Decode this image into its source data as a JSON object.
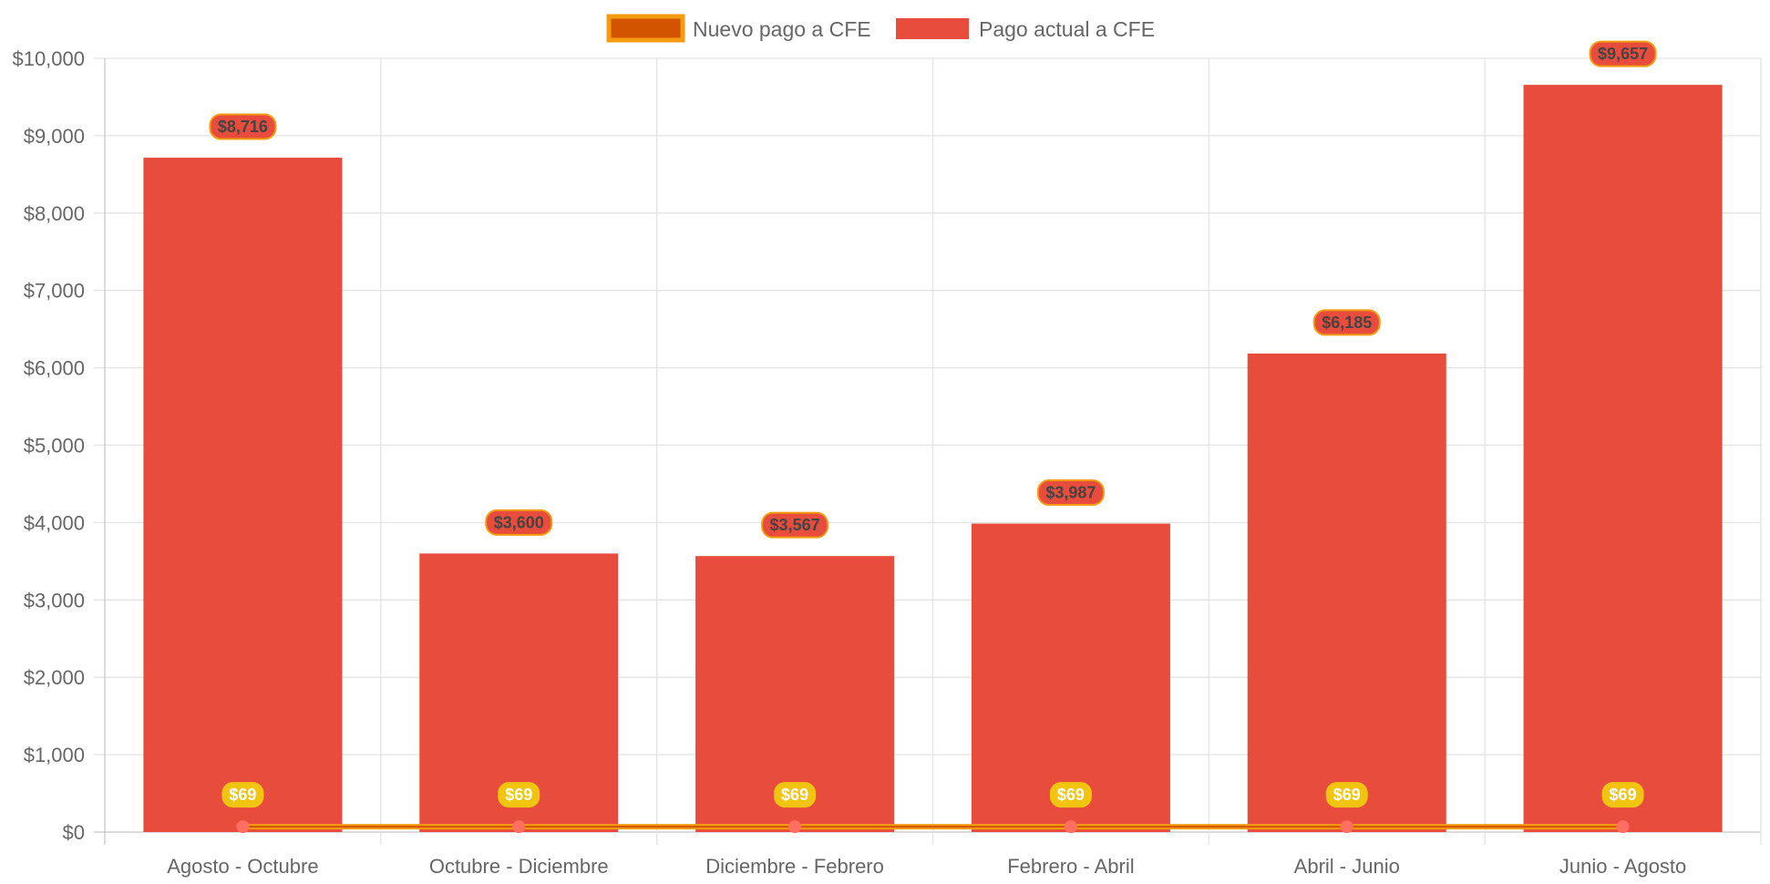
{
  "chart_data": {
    "type": "bar",
    "categories": [
      "Agosto - Octubre",
      "Octubre - Diciembre",
      "Diciembre - Febrero",
      "Febrero - Abril",
      "Abril - Junio",
      "Junio - Agosto"
    ],
    "series": [
      {
        "name": "Nuevo pago a CFE",
        "type": "line",
        "values": [
          69,
          69,
          69,
          69,
          69,
          69
        ],
        "data_labels": [
          "$69",
          "$69",
          "$69",
          "$69",
          "$69",
          "$69"
        ],
        "color": "#d35400",
        "border_color": "#f39c12",
        "point_color": "#ff6f61",
        "label_bg": "#f1c40f"
      },
      {
        "name": "Pago actual a CFE",
        "type": "bar",
        "values": [
          8716,
          3600,
          3567,
          3987,
          6185,
          9657
        ],
        "data_labels": [
          "$8,716",
          "$3,600",
          "$3,567",
          "$3,987",
          "$6,185",
          "$9,657"
        ],
        "color": "#e74c3c",
        "label_border": "#f39c12"
      }
    ],
    "y_ticks": [
      "$0",
      "$1,000",
      "$2,000",
      "$3,000",
      "$4,000",
      "$5,000",
      "$6,000",
      "$7,000",
      "$8,000",
      "$9,000",
      "$10,000"
    ],
    "ylim": [
      0,
      10000
    ],
    "grid": true,
    "legend_position": "top"
  }
}
